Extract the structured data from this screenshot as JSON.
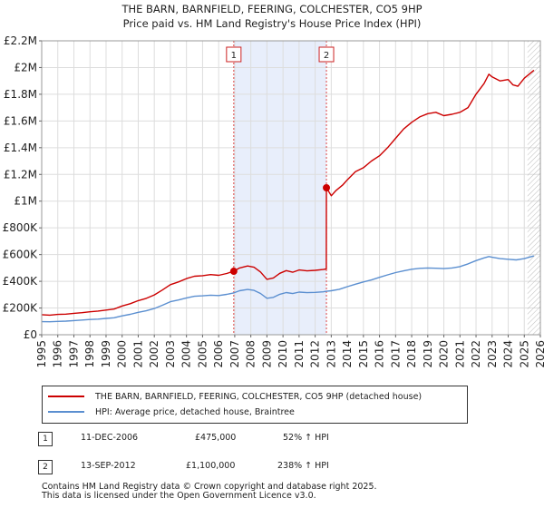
{
  "title_line1": "THE BARN, BARNFIELD, FEERING, COLCHESTER, CO5 9HP",
  "title_line2": "Price paid vs. HM Land Registry's House Price Index (HPI)",
  "colors": {
    "property": "#cc0000",
    "hpi": "#5b8fd0",
    "shade": "#e8eefb",
    "vline": "#dd4444"
  },
  "legend": {
    "property_label": "THE BARN, BARNFIELD, FEERING, COLCHESTER, CO5 9HP (detached house)",
    "hpi_label": "HPI: Average price, detached house, Braintree"
  },
  "transactions": [
    {
      "num": "1",
      "date": "11-DEC-2006",
      "price": "£475,000",
      "hpi": "52% ↑ HPI"
    },
    {
      "num": "2",
      "date": "13-SEP-2012",
      "price": "£1,100,000",
      "hpi": "238% ↑ HPI"
    }
  ],
  "footer_line1": "Contains HM Land Registry data © Crown copyright and database right 2025.",
  "footer_line2": "This data is licensed under the Open Government Licence v3.0.",
  "chart_data": {
    "type": "line",
    "xlim": [
      1995,
      2026
    ],
    "ylim": [
      0,
      2200000
    ],
    "x_ticks": [
      "1995",
      "1996",
      "1997",
      "1998",
      "1999",
      "2000",
      "2001",
      "2002",
      "2003",
      "2004",
      "2005",
      "2006",
      "2007",
      "2008",
      "2009",
      "2010",
      "2011",
      "2012",
      "2013",
      "2014",
      "2015",
      "2016",
      "2017",
      "2018",
      "2019",
      "2020",
      "2021",
      "2022",
      "2023",
      "2024",
      "2025",
      "2026"
    ],
    "y_ticks": [
      {
        "value": 0,
        "label": "£0"
      },
      {
        "value": 200000,
        "label": "£200K"
      },
      {
        "value": 400000,
        "label": "£400K"
      },
      {
        "value": 600000,
        "label": "£600K"
      },
      {
        "value": 800000,
        "label": "£800K"
      },
      {
        "value": 1000000,
        "label": "£1M"
      },
      {
        "value": 1200000,
        "label": "£1.2M"
      },
      {
        "value": 1400000,
        "label": "£1.4M"
      },
      {
        "value": 1600000,
        "label": "£1.6M"
      },
      {
        "value": 1800000,
        "label": "£1.8M"
      },
      {
        "value": 2000000,
        "label": "£2M"
      },
      {
        "value": 2200000,
        "label": "£2.2M"
      }
    ],
    "grid": true,
    "shaded_period": [
      2006.94,
      2012.7
    ],
    "forecast_start": 2025.2,
    "markers": [
      {
        "label": "1",
        "x": 2006.94,
        "y": 475000
      },
      {
        "label": "2",
        "x": 2012.7,
        "y": 1100000
      }
    ],
    "series": [
      {
        "name": "THE BARN, BARNFIELD, FEERING, COLCHESTER, CO5 9HP (detached house)",
        "points": [
          [
            1995.0,
            150000
          ],
          [
            1995.5,
            147000
          ],
          [
            1996.0,
            152000
          ],
          [
            1996.5,
            154000
          ],
          [
            1997.0,
            160000
          ],
          [
            1997.5,
            165000
          ],
          [
            1998.0,
            172000
          ],
          [
            1998.5,
            177000
          ],
          [
            1999.0,
            185000
          ],
          [
            1999.5,
            192000
          ],
          [
            2000.0,
            215000
          ],
          [
            2000.5,
            232000
          ],
          [
            2001.0,
            255000
          ],
          [
            2001.5,
            272000
          ],
          [
            2002.0,
            298000
          ],
          [
            2002.5,
            335000
          ],
          [
            2003.0,
            375000
          ],
          [
            2003.5,
            395000
          ],
          [
            2004.0,
            420000
          ],
          [
            2004.5,
            438000
          ],
          [
            2005.0,
            442000
          ],
          [
            2005.5,
            450000
          ],
          [
            2006.0,
            445000
          ],
          [
            2006.5,
            458000
          ],
          [
            2006.94,
            475000
          ],
          [
            2007.3,
            500000
          ],
          [
            2007.8,
            515000
          ],
          [
            2008.2,
            505000
          ],
          [
            2008.6,
            470000
          ],
          [
            2009.0,
            415000
          ],
          [
            2009.4,
            425000
          ],
          [
            2009.8,
            460000
          ],
          [
            2010.2,
            480000
          ],
          [
            2010.6,
            468000
          ],
          [
            2011.0,
            485000
          ],
          [
            2011.5,
            478000
          ],
          [
            2012.0,
            482000
          ],
          [
            2012.5,
            488000
          ],
          [
            2012.69,
            492000
          ],
          [
            2012.7,
            1100000
          ],
          [
            2013.0,
            1040000
          ],
          [
            2013.3,
            1080000
          ],
          [
            2013.7,
            1120000
          ],
          [
            2014.0,
            1160000
          ],
          [
            2014.5,
            1220000
          ],
          [
            2015.0,
            1250000
          ],
          [
            2015.5,
            1300000
          ],
          [
            2016.0,
            1340000
          ],
          [
            2016.5,
            1400000
          ],
          [
            2017.0,
            1470000
          ],
          [
            2017.5,
            1540000
          ],
          [
            2018.0,
            1590000
          ],
          [
            2018.5,
            1630000
          ],
          [
            2019.0,
            1655000
          ],
          [
            2019.5,
            1665000
          ],
          [
            2020.0,
            1640000
          ],
          [
            2020.5,
            1650000
          ],
          [
            2021.0,
            1665000
          ],
          [
            2021.5,
            1700000
          ],
          [
            2022.0,
            1800000
          ],
          [
            2022.5,
            1880000
          ],
          [
            2022.8,
            1950000
          ],
          [
            2023.0,
            1930000
          ],
          [
            2023.5,
            1900000
          ],
          [
            2024.0,
            1910000
          ],
          [
            2024.3,
            1870000
          ],
          [
            2024.6,
            1860000
          ],
          [
            2025.0,
            1920000
          ],
          [
            2025.3,
            1950000
          ],
          [
            2025.6,
            1980000
          ]
        ]
      },
      {
        "name": "HPI: Average price, detached house, Braintree",
        "points": [
          [
            1995.0,
            98000
          ],
          [
            1995.5,
            97000
          ],
          [
            1996.0,
            100000
          ],
          [
            1996.5,
            102000
          ],
          [
            1997.0,
            106000
          ],
          [
            1997.5,
            110000
          ],
          [
            1998.0,
            114000
          ],
          [
            1998.5,
            117000
          ],
          [
            1999.0,
            122000
          ],
          [
            1999.5,
            127000
          ],
          [
            2000.0,
            141000
          ],
          [
            2000.5,
            153000
          ],
          [
            2001.0,
            168000
          ],
          [
            2001.5,
            179000
          ],
          [
            2002.0,
            196000
          ],
          [
            2002.5,
            221000
          ],
          [
            2003.0,
            247000
          ],
          [
            2003.5,
            260000
          ],
          [
            2004.0,
            276000
          ],
          [
            2004.5,
            288000
          ],
          [
            2005.0,
            291000
          ],
          [
            2005.5,
            296000
          ],
          [
            2006.0,
            293000
          ],
          [
            2006.5,
            302000
          ],
          [
            2006.94,
            313000
          ],
          [
            2007.3,
            329000
          ],
          [
            2007.8,
            339000
          ],
          [
            2008.2,
            332000
          ],
          [
            2008.6,
            309000
          ],
          [
            2009.0,
            273000
          ],
          [
            2009.4,
            280000
          ],
          [
            2009.8,
            303000
          ],
          [
            2010.2,
            316000
          ],
          [
            2010.6,
            308000
          ],
          [
            2011.0,
            319000
          ],
          [
            2011.5,
            315000
          ],
          [
            2012.0,
            317000
          ],
          [
            2012.5,
            321000
          ],
          [
            2012.7,
            325000
          ],
          [
            2013.0,
            329000
          ],
          [
            2013.5,
            340000
          ],
          [
            2014.0,
            360000
          ],
          [
            2014.5,
            378000
          ],
          [
            2015.0,
            395000
          ],
          [
            2015.5,
            410000
          ],
          [
            2016.0,
            430000
          ],
          [
            2016.5,
            448000
          ],
          [
            2017.0,
            465000
          ],
          [
            2017.5,
            478000
          ],
          [
            2018.0,
            490000
          ],
          [
            2018.5,
            497000
          ],
          [
            2019.0,
            500000
          ],
          [
            2019.5,
            498000
          ],
          [
            2020.0,
            495000
          ],
          [
            2020.5,
            500000
          ],
          [
            2021.0,
            510000
          ],
          [
            2021.5,
            530000
          ],
          [
            2022.0,
            555000
          ],
          [
            2022.5,
            575000
          ],
          [
            2022.8,
            585000
          ],
          [
            2023.0,
            580000
          ],
          [
            2023.5,
            570000
          ],
          [
            2024.0,
            565000
          ],
          [
            2024.5,
            560000
          ],
          [
            2025.0,
            570000
          ],
          [
            2025.3,
            580000
          ],
          [
            2025.6,
            590000
          ]
        ]
      }
    ]
  }
}
